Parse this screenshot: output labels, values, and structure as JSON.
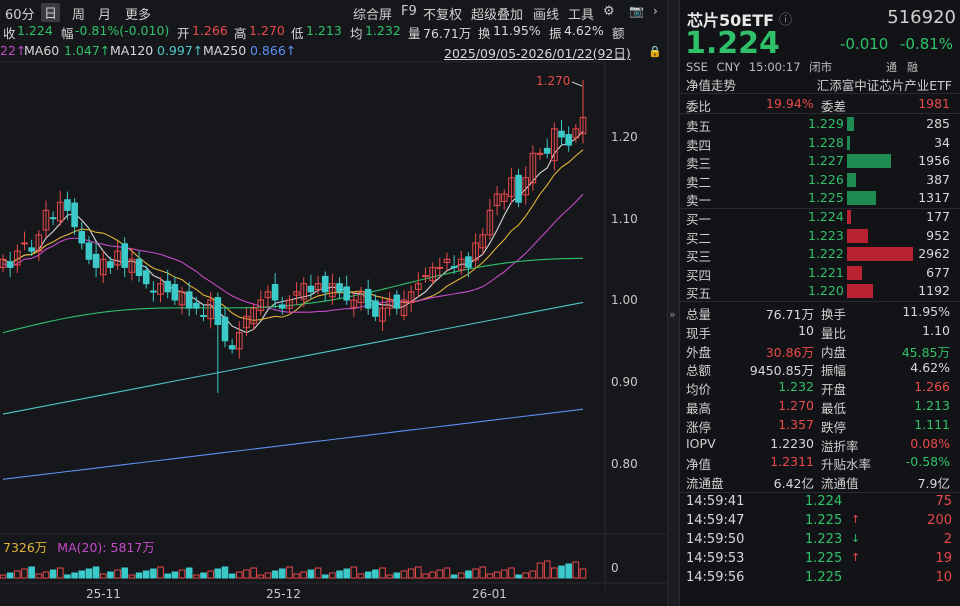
{
  "toolbar": {
    "period": "60分",
    "day": "日",
    "week": "周",
    "month": "月",
    "more": "更多",
    "composite": "综合屏",
    "f9": "F9",
    "no_adjust": "不复权",
    "overlay": "超级叠加",
    "draw": "画线",
    "tools": "工具"
  },
  "info": {
    "close_label": "收",
    "close": "1.224",
    "amp_label": "幅",
    "amp": "-0.81%(-0.010)",
    "open_label": "开",
    "open": "1.266",
    "high_label": "高",
    "high": "1.270",
    "low_label": "低",
    "low": "1.213",
    "avg_label": "均",
    "avg": "1.232",
    "vol_label": "量",
    "vol": "76.71万",
    "turn_label": "换",
    "turn": "11.95%",
    "swing_label": "振",
    "swing": "4.62%",
    "amount_label": "额"
  },
  "ma": {
    "ma20_tail": "22↑",
    "ma60_label": "MA60",
    "ma60": "1.047↑",
    "ma120_label": "MA120",
    "ma120": "0.997↑",
    "ma250_label": "MA250",
    "ma250": "0.866↑",
    "range": "2025/09/05-2026/01/22(92日)"
  },
  "price_axis": [
    "1.20",
    "1.10",
    "1.00",
    "0.90",
    "0.80"
  ],
  "max_label": "1.270",
  "volume": {
    "vol": "7326万",
    "ma_label": "MA(20):",
    "ma_value": "5817万",
    "axis_zero": "0"
  },
  "date_axis": [
    "25-11",
    "25-12",
    "26-01"
  ],
  "colors": {
    "up": "#e84a4a",
    "down": "#3cc9c9",
    "ma5": "#d8d8d8",
    "ma10": "#e0b437",
    "ma20": "#c54ac9",
    "ma60": "#2fc168",
    "ma120": "#4fc6c8",
    "ma250": "#5d8ff2"
  },
  "quote": {
    "name": "芯片50ETF",
    "code": "516920",
    "price": "1.224",
    "change": "-0.010",
    "change_pct": "-0.81%",
    "market": "SSE",
    "currency": "CNY",
    "time": "15:00:17",
    "status": "闭市",
    "tags": [
      "通",
      "融"
    ],
    "nav_trend": "净值走势",
    "full_name": "汇添富中证芯片产业ETF",
    "weibi_label": "委比",
    "weibi": "19.94%",
    "weicha_label": "委差",
    "weicha": "1981",
    "asks": [
      {
        "label": "卖五",
        "price": "1.229",
        "vol": "285",
        "share": 0.1
      },
      {
        "label": "卖四",
        "price": "1.228",
        "vol": "34",
        "share": 0.01
      },
      {
        "label": "卖三",
        "price": "1.227",
        "vol": "1956",
        "share": 0.66
      },
      {
        "label": "卖二",
        "price": "1.226",
        "vol": "387",
        "share": 0.13
      },
      {
        "label": "卖一",
        "price": "1.225",
        "vol": "1317",
        "share": 0.44
      }
    ],
    "bids": [
      {
        "label": "买一",
        "price": "1.224",
        "vol": "177",
        "share": 0.06
      },
      {
        "label": "买二",
        "price": "1.223",
        "vol": "952",
        "share": 0.32
      },
      {
        "label": "买三",
        "price": "1.222",
        "vol": "2962",
        "share": 1.0
      },
      {
        "label": "买四",
        "price": "1.221",
        "vol": "677",
        "share": 0.23
      },
      {
        "label": "买五",
        "price": "1.220",
        "vol": "1192",
        "share": 0.4
      }
    ],
    "stats": [
      {
        "l1": "总量",
        "v1": "76.71万",
        "c1": "w",
        "l2": "换手",
        "v2": "11.95%",
        "c2": "w"
      },
      {
        "l1": "现手",
        "v1": "10",
        "c1": "w",
        "l2": "量比",
        "v2": "1.10",
        "c2": "w"
      },
      {
        "l1": "外盘",
        "v1": "30.86万",
        "c1": "r",
        "l2": "内盘",
        "v2": "45.85万",
        "c2": "g"
      },
      {
        "l1": "总额",
        "v1": "9450.85万",
        "c1": "w",
        "l2": "振幅",
        "v2": "4.62%",
        "c2": "w"
      },
      {
        "l1": "均价",
        "v1": "1.232",
        "c1": "g",
        "l2": "开盘",
        "v2": "1.266",
        "c2": "r"
      },
      {
        "l1": "最高",
        "v1": "1.270",
        "c1": "r",
        "l2": "最低",
        "v2": "1.213",
        "c2": "g"
      },
      {
        "l1": "涨停",
        "v1": "1.357",
        "c1": "r",
        "l2": "跌停",
        "v2": "1.111",
        "c2": "g"
      },
      {
        "l1": "IOPV",
        "v1": "1.2230",
        "c1": "w",
        "l2": "溢折率",
        "v2": "0.08%",
        "c2": "r"
      },
      {
        "l1": "净值",
        "v1": "1.2311",
        "c1": "r",
        "l2": "升贴水率",
        "v2": "-0.58%",
        "c2": "g"
      },
      {
        "l1": "流通盘",
        "v1": "6.42亿",
        "c1": "w",
        "l2": "流通值",
        "v2": "7.9亿",
        "c2": "w"
      }
    ],
    "ticks": [
      {
        "time": "14:59:41",
        "price": "1.224",
        "dir": "",
        "vol": "75"
      },
      {
        "time": "14:59:47",
        "price": "1.225",
        "dir": "↑",
        "vol": "200"
      },
      {
        "time": "14:59:50",
        "price": "1.223",
        "dir": "↓",
        "vol": "2"
      },
      {
        "time": "14:59:53",
        "price": "1.225",
        "dir": "↑",
        "vol": "19"
      },
      {
        "time": "14:59:56",
        "price": "1.225",
        "dir": "",
        "vol": "10"
      }
    ]
  }
}
